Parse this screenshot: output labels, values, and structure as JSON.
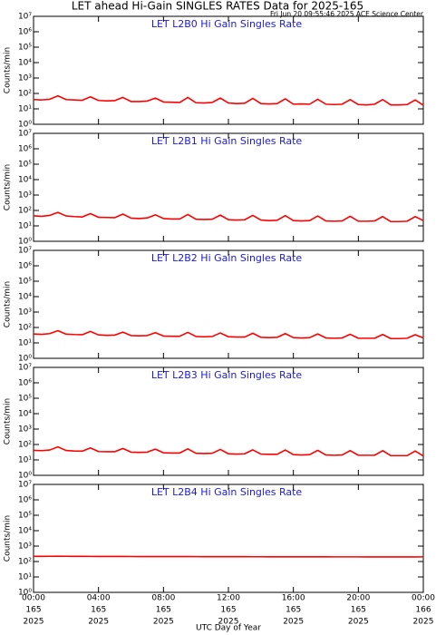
{
  "title": "LET ahead Hi-Gain SINGLES RATES Data for 2025-165",
  "timestamp": "Fri Jun 20 09:55:46 2025 ACE Science Center",
  "x_axis": {
    "label": "UTC Day of Year",
    "xlim": [
      0,
      24
    ],
    "xticks": [
      {
        "value": 0,
        "label": "00:00",
        "day": "165",
        "year": "2025"
      },
      {
        "value": 4,
        "label": "04:00",
        "day": "165",
        "year": "2025"
      },
      {
        "value": 8,
        "label": "08:00",
        "day": "165",
        "year": "2025"
      },
      {
        "value": 12,
        "label": "12:00",
        "day": "165",
        "year": "2025"
      },
      {
        "value": 16,
        "label": "16:00",
        "day": "165",
        "year": "2025"
      },
      {
        "value": 20,
        "label": "20:00",
        "day": "165",
        "year": "2025"
      },
      {
        "value": 24,
        "label": "00:00",
        "day": "166",
        "year": "2025"
      }
    ],
    "x": [
      0,
      0.5,
      1,
      1.5,
      2,
      2.5,
      3,
      3.5,
      4,
      4.5,
      5,
      5.5,
      6,
      6.5,
      7,
      7.5,
      8,
      8.5,
      9,
      9.5,
      10,
      10.5,
      11,
      11.5,
      12,
      12.5,
      13,
      13.5,
      14,
      14.5,
      15,
      15.5,
      16,
      16.5,
      17,
      17.5,
      18,
      18.5,
      19,
      19.5,
      20,
      20.5,
      21,
      21.5,
      22,
      22.5,
      23,
      23.5,
      24
    ]
  },
  "chart_data": [
    {
      "type": "line",
      "title": "LET L2B0 Hi Gain Singles Rate",
      "ylabel": "Counts/min",
      "log": true,
      "color": "#ff0000",
      "ylim": [
        1,
        10000000
      ],
      "yticks": [
        {
          "value": 1,
          "label": "10⁰"
        },
        {
          "value": 10,
          "label": "10¹"
        },
        {
          "value": 100,
          "label": "10²"
        },
        {
          "value": 1000,
          "label": "10³"
        },
        {
          "value": 10000,
          "label": "10⁴"
        },
        {
          "value": 100000,
          "label": "10⁵"
        },
        {
          "value": 1000000,
          "label": "10⁶"
        },
        {
          "value": 10000000,
          "label": "10⁷"
        }
      ],
      "values": [
        40,
        38,
        42,
        70,
        40,
        38,
        36,
        60,
        35,
        33,
        34,
        55,
        30,
        30,
        32,
        50,
        28,
        27,
        26,
        55,
        25,
        24,
        26,
        50,
        24,
        22,
        23,
        48,
        22,
        21,
        22,
        45,
        20,
        21,
        20,
        42,
        20,
        19,
        20,
        40,
        19,
        18,
        20,
        40,
        18,
        18,
        19,
        38,
        17
      ]
    },
    {
      "type": "line",
      "title": "LET L2B1 Hi Gain Singles Rate",
      "ylabel": "Counts/min",
      "log": true,
      "color": "#ff0000",
      "ylim": [
        1,
        10000000
      ],
      "yticks": [
        {
          "value": 1,
          "label": "10⁰"
        },
        {
          "value": 10,
          "label": "10¹"
        },
        {
          "value": 100,
          "label": "10²"
        },
        {
          "value": 1000,
          "label": "10³"
        },
        {
          "value": 10000,
          "label": "10⁴"
        },
        {
          "value": 100000,
          "label": "10⁵"
        },
        {
          "value": 1000000,
          "label": "10⁶"
        },
        {
          "value": 10000000,
          "label": "10⁷"
        }
      ],
      "values": [
        45,
        42,
        48,
        75,
        44,
        40,
        38,
        62,
        36,
        35,
        34,
        58,
        32,
        30,
        33,
        52,
        30,
        28,
        28,
        55,
        27,
        26,
        27,
        50,
        25,
        24,
        25,
        48,
        24,
        22,
        23,
        46,
        22,
        21,
        22,
        44,
        21,
        20,
        21,
        42,
        20,
        20,
        21,
        40,
        19,
        19,
        20,
        40,
        22
      ]
    },
    {
      "type": "line",
      "title": "LET L2B2 Hi Gain Singles Rate",
      "ylabel": "Counts/min",
      "log": true,
      "color": "#ff0000",
      "ylim": [
        1,
        10000000
      ],
      "yticks": [
        {
          "value": 1,
          "label": "10⁰"
        },
        {
          "value": 10,
          "label": "10¹"
        },
        {
          "value": 100,
          "label": "10²"
        },
        {
          "value": 1000,
          "label": "10³"
        },
        {
          "value": 10000,
          "label": "10⁴"
        },
        {
          "value": 100000,
          "label": "10⁵"
        },
        {
          "value": 1000000,
          "label": "10⁶"
        },
        {
          "value": 10000000,
          "label": "10⁷"
        }
      ],
      "values": [
        38,
        36,
        40,
        62,
        37,
        35,
        34,
        55,
        33,
        31,
        32,
        50,
        30,
        29,
        30,
        46,
        28,
        27,
        27,
        48,
        26,
        25,
        26,
        44,
        25,
        24,
        24,
        42,
        23,
        22,
        23,
        40,
        22,
        21,
        22,
        38,
        21,
        20,
        21,
        36,
        20,
        20,
        20,
        35,
        19,
        19,
        20,
        34,
        21
      ]
    },
    {
      "type": "line",
      "title": "LET L2B3 Hi Gain Singles Rate",
      "ylabel": "Counts/min",
      "log": true,
      "color": "#ff0000",
      "ylim": [
        1,
        10000000
      ],
      "yticks": [
        {
          "value": 1,
          "label": "10⁰"
        },
        {
          "value": 10,
          "label": "10¹"
        },
        {
          "value": 100,
          "label": "10²"
        },
        {
          "value": 1000,
          "label": "10³"
        },
        {
          "value": 10000,
          "label": "10⁴"
        },
        {
          "value": 100000,
          "label": "10⁵"
        },
        {
          "value": 1000000,
          "label": "10⁶"
        },
        {
          "value": 10000000,
          "label": "10⁷"
        }
      ],
      "values": [
        42,
        40,
        44,
        70,
        41,
        38,
        37,
        60,
        35,
        34,
        34,
        55,
        32,
        31,
        32,
        50,
        29,
        28,
        28,
        52,
        27,
        26,
        27,
        48,
        25,
        24,
        25,
        45,
        24,
        23,
        23,
        44,
        22,
        21,
        22,
        42,
        21,
        20,
        21,
        40,
        20,
        20,
        20,
        40,
        19,
        19,
        19,
        38,
        18
      ]
    },
    {
      "type": "line",
      "title": "LET L2B4 Hi Gain Singles Rate",
      "ylabel": "Counts/min",
      "log": true,
      "color": "#ff0000",
      "ylim": [
        1,
        10000000
      ],
      "yticks": [
        {
          "value": 1,
          "label": "10⁰"
        },
        {
          "value": 10,
          "label": "10¹"
        },
        {
          "value": 100,
          "label": "10²"
        },
        {
          "value": 1000,
          "label": "10³"
        },
        {
          "value": 10000,
          "label": "10⁴"
        },
        {
          "value": 100000,
          "label": "10⁵"
        },
        {
          "value": 1000000,
          "label": "10⁶"
        },
        {
          "value": 10000000,
          "label": "10⁷"
        }
      ],
      "values": [
        215,
        215,
        218,
        220,
        218,
        216,
        215,
        214,
        213,
        212,
        212,
        212,
        211,
        210,
        210,
        210,
        209,
        208,
        208,
        208,
        207,
        206,
        206,
        206,
        205,
        205,
        205,
        204,
        204,
        203,
        203,
        203,
        202,
        202,
        202,
        201,
        201,
        200,
        200,
        200,
        200,
        199,
        199,
        199,
        198,
        198,
        198,
        198,
        200
      ]
    }
  ]
}
